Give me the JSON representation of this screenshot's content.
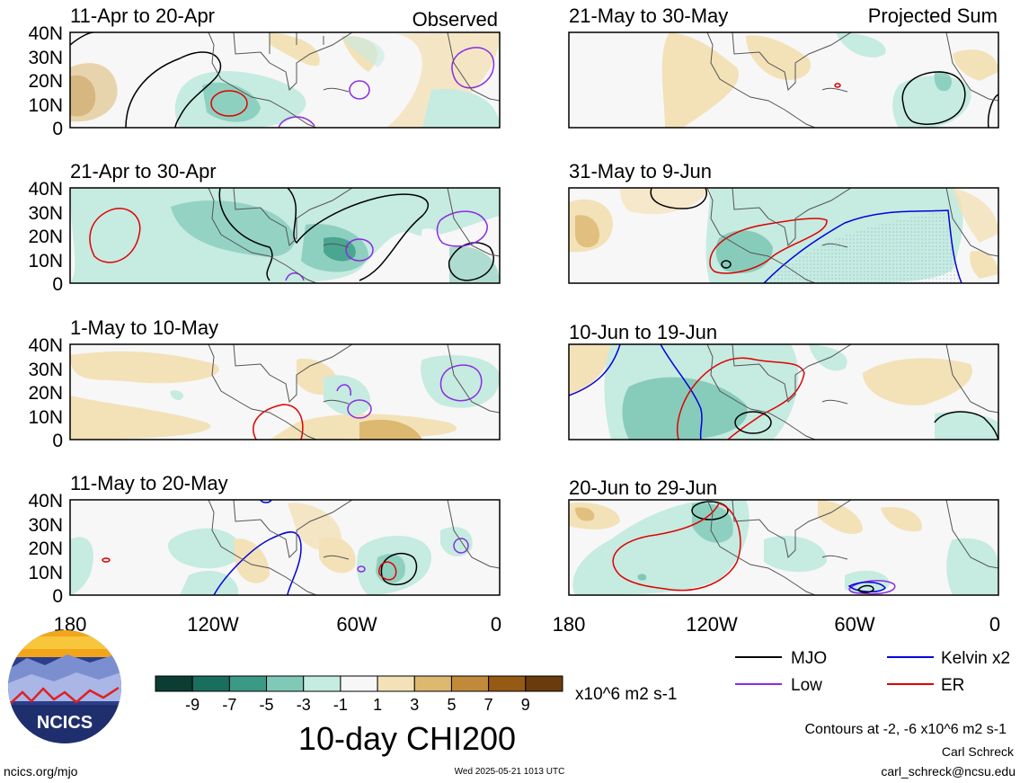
{
  "panels_left": [
    {
      "title": "11-Apr to 20-Apr"
    },
    {
      "title": "21-Apr to 30-Apr"
    },
    {
      "title": "1-May to 10-May"
    },
    {
      "title": "11-May to 20-May"
    }
  ],
  "panels_right": [
    {
      "title": "21-May to 30-May"
    },
    {
      "title": "31-May to 9-Jun"
    },
    {
      "title": "10-Jun to 19-Jun"
    },
    {
      "title": "20-Jun to 29-Jun"
    }
  ],
  "column_labels": {
    "left": "Observed",
    "right": "Projected Sum"
  },
  "lat_ticks": [
    "40N",
    "30N",
    "20N",
    "10N",
    "0"
  ],
  "lon_ticks": [
    "180",
    "120W",
    "60W",
    "0"
  ],
  "colorbar": {
    "tick_labels": [
      "-9",
      "-7",
      "-5",
      "-3",
      "-1",
      "1",
      "3",
      "5",
      "7",
      "9"
    ],
    "colors": [
      "#0c3d33",
      "#1a6e5e",
      "#3a9a86",
      "#7fc9b6",
      "#c6ebe1",
      "#f7f7f7",
      "#f3e1b8",
      "#dcb870",
      "#c08a3a",
      "#955a14",
      "#6a3b0c"
    ],
    "units": "x10^6 m2 s-1"
  },
  "legend": [
    {
      "label": "MJO",
      "color": "#000000"
    },
    {
      "label": "Kelvin x2",
      "color": "#0000dd"
    },
    {
      "label": "Low",
      "color": "#8a2be2"
    },
    {
      "label": "ER",
      "color": "#e00000"
    }
  ],
  "main_title": "10-day CHI200",
  "contours_note": "Contours at -2, -6 x10^6 m2 s-1",
  "author": "Carl Schreck",
  "email": "carl_schreck@ncsu.edu",
  "website": "ncics.org/mjo",
  "timestamp": "Wed 2025-05-21 1013 UTC",
  "logo_text": "NCICS"
}
